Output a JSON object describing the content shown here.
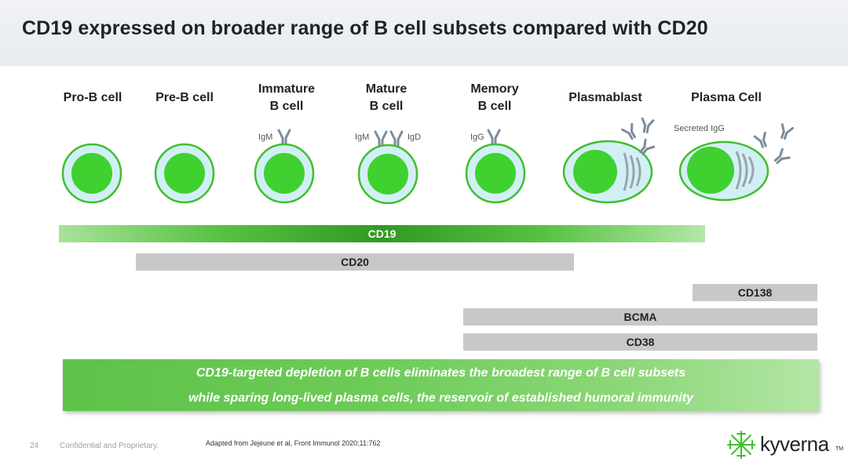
{
  "title": "CD19 expressed on broader range of B cell subsets compared with CD20",
  "stages": [
    {
      "line1": "Pro-B cell",
      "line2": ""
    },
    {
      "line1": "Pre-B cell",
      "line2": ""
    },
    {
      "line1": "Immature",
      "line2": "B cell"
    },
    {
      "line1": "Mature",
      "line2": "B cell"
    },
    {
      "line1": "Memory",
      "line2": "B cell"
    },
    {
      "line1": "Plasmablast",
      "line2": ""
    },
    {
      "line1": "Plasma Cell",
      "line2": ""
    }
  ],
  "antibody_labels": {
    "immature": "IgM",
    "mature_left": "IgM",
    "mature_right": "IgD",
    "memory": "IgG",
    "plasma": "Secreted IgG"
  },
  "markers": {
    "cd19": "CD19",
    "cd20": "CD20",
    "cd138": "CD138",
    "bcma": "BCMA",
    "cd38": "CD38"
  },
  "callout": {
    "line1": "CD19-targeted depletion of B cells eliminates the broadest range of B cell subsets",
    "line2": "while sparing long-lived plasma cells, the reservoir of established humoral immunity"
  },
  "footer": {
    "page_number": "24",
    "confidential": "Confidential and Proprietary.",
    "reference": "Adapted from Jejeune et al, Front Immunol 2020;11:762"
  },
  "brand": {
    "name": "kyverna",
    "tm": "TM",
    "colors": {
      "green": "#3fbf2a",
      "cell_fill": "#cfeef6",
      "nucleus": "#3fd12f",
      "antibody": "#7a8a99"
    }
  }
}
